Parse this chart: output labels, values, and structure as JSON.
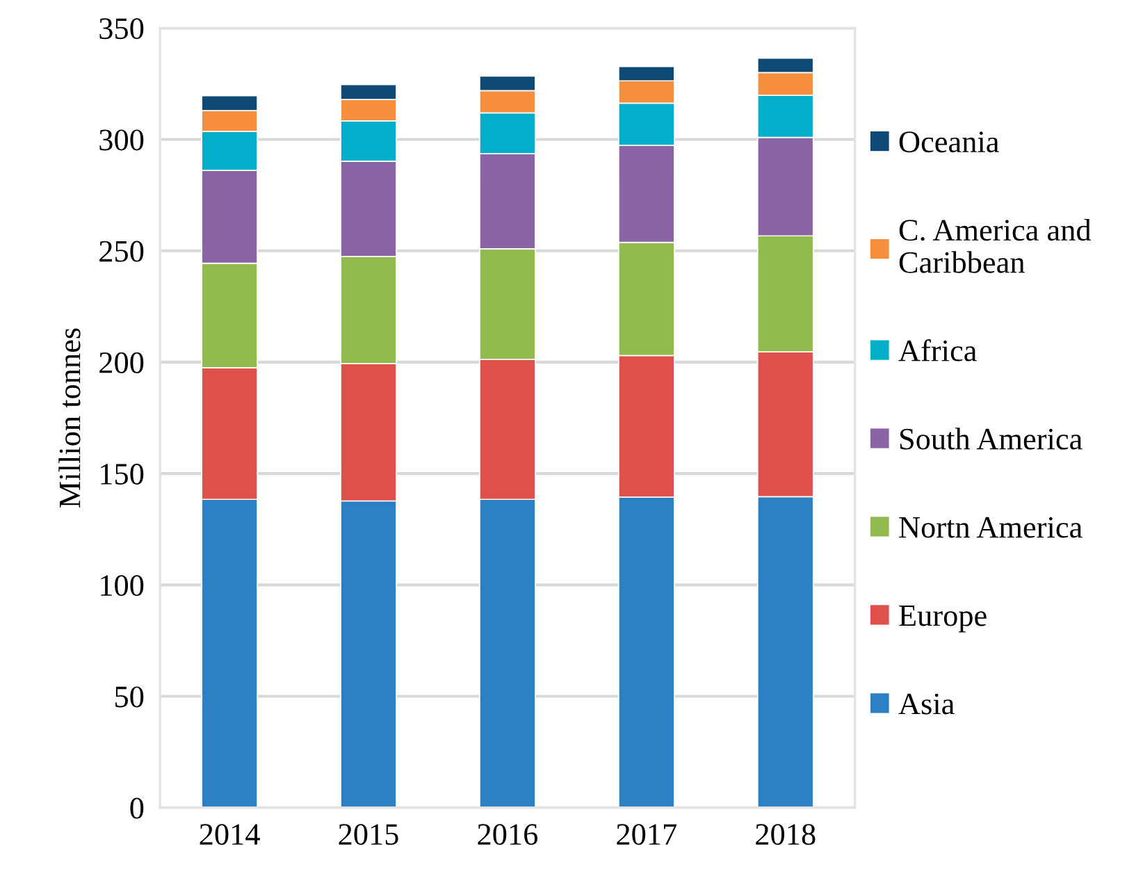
{
  "chart_data": {
    "type": "bar",
    "stacked": true,
    "ylabel": "Million tonnes",
    "categories": [
      "2014",
      "2015",
      "2016",
      "2017",
      "2018"
    ],
    "ylim": [
      0,
      350
    ],
    "yticks": [
      0,
      50,
      100,
      150,
      200,
      250,
      300,
      350
    ],
    "grid": "y",
    "legend": "right",
    "series": [
      {
        "name": "Asia",
        "color": "#2a80c2",
        "values": [
          138.4,
          137.7,
          138.4,
          139.4,
          139.6
        ]
      },
      {
        "name": "Europe",
        "color": "#e0504a",
        "values": [
          59.1,
          61.7,
          62.9,
          63.6,
          65.0
        ]
      },
      {
        "name": "Nortn America",
        "color": "#92bb4d",
        "values": [
          46.9,
          48.1,
          49.6,
          50.8,
          52.1
        ]
      },
      {
        "name": "South America",
        "color": "#8b64a6",
        "values": [
          41.7,
          42.7,
          42.7,
          43.5,
          44.2
        ]
      },
      {
        "name": "Africa",
        "color": "#00aec9",
        "values": [
          17.5,
          18.1,
          18.3,
          19.0,
          18.9
        ]
      },
      {
        "name": "C. America and Caribbean",
        "color": "#f68e3e",
        "values": [
          9.3,
          9.6,
          10.0,
          10.0,
          10.2
        ]
      },
      {
        "name": "Oceania",
        "color": "#0e4a75",
        "values": [
          6.7,
          6.7,
          6.5,
          6.4,
          6.5
        ]
      }
    ]
  }
}
